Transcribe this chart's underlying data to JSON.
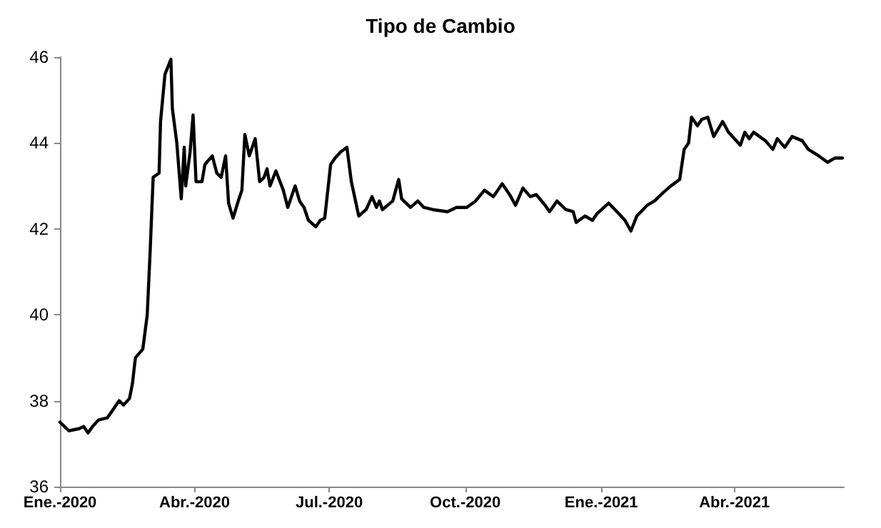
{
  "chart_data": {
    "type": "line",
    "title": "Tipo de Cambio",
    "x": [
      "2020-01-01",
      "2020-01-07",
      "2020-01-14",
      "2020-01-17",
      "2020-01-20",
      "2020-01-23",
      "2020-01-27",
      "2020-02-02",
      "2020-02-05",
      "2020-02-10",
      "2020-02-13",
      "2020-02-17",
      "2020-02-19",
      "2020-02-21",
      "2020-02-26",
      "2020-02-29",
      "2020-03-02",
      "2020-03-04",
      "2020-03-08",
      "2020-03-09",
      "2020-03-12",
      "2020-03-16",
      "2020-03-17",
      "2020-03-20",
      "2020-03-23",
      "2020-03-25",
      "2020-03-26",
      "2020-03-29",
      "2020-03-31",
      "2020-04-02",
      "2020-04-06",
      "2020-04-08",
      "2020-04-13",
      "2020-04-16",
      "2020-04-19",
      "2020-04-22",
      "2020-04-24",
      "2020-04-27",
      "2020-05-01",
      "2020-05-03",
      "2020-05-05",
      "2020-05-08",
      "2020-05-12",
      "2020-05-15",
      "2020-05-18",
      "2020-05-20",
      "2020-05-22",
      "2020-05-26",
      "2020-05-31",
      "2020-06-03",
      "2020-06-08",
      "2020-06-11",
      "2020-06-14",
      "2020-06-17",
      "2020-06-22",
      "2020-06-25",
      "2020-06-28",
      "2020-07-02",
      "2020-07-05",
      "2020-07-09",
      "2020-07-13",
      "2020-07-16",
      "2020-07-21",
      "2020-07-26",
      "2020-07-30",
      "2020-08-02",
      "2020-08-04",
      "2020-08-06",
      "2020-08-13",
      "2020-08-17",
      "2020-08-19",
      "2020-08-25",
      "2020-08-30",
      "2020-09-03",
      "2020-09-09",
      "2020-09-19",
      "2020-09-25",
      "2020-10-02",
      "2020-10-08",
      "2020-10-14",
      "2020-10-20",
      "2020-10-26",
      "2020-10-31",
      "2020-11-04",
      "2020-11-09",
      "2020-11-14",
      "2020-11-18",
      "2020-11-24",
      "2020-11-27",
      "2020-12-02",
      "2020-12-08",
      "2020-12-13",
      "2020-12-15",
      "2020-12-21",
      "2020-12-26",
      "2020-12-29",
      "2021-01-06",
      "2021-01-13",
      "2021-01-17",
      "2021-01-21",
      "2021-01-25",
      "2021-02-01",
      "2021-02-06",
      "2021-02-12",
      "2021-02-17",
      "2021-02-23",
      "2021-02-26",
      "2021-03-01",
      "2021-03-03",
      "2021-03-07",
      "2021-03-10",
      "2021-03-14",
      "2021-03-18",
      "2021-03-24",
      "2021-03-28",
      "2021-04-05",
      "2021-04-08",
      "2021-04-11",
      "2021-04-14",
      "2021-04-22",
      "2021-04-27",
      "2021-04-30",
      "2021-05-05",
      "2021-05-10",
      "2021-05-17",
      "2021-05-21",
      "2021-05-28",
      "2021-06-03",
      "2021-06-08",
      "2021-06-13"
    ],
    "series": [
      {
        "color": "#000000",
        "values": [
          37.5,
          37.3,
          37.35,
          37.4,
          37.25,
          37.4,
          37.55,
          37.6,
          37.75,
          38.0,
          37.9,
          38.05,
          38.4,
          39.0,
          39.2,
          40.0,
          41.5,
          43.2,
          43.3,
          44.5,
          45.6,
          45.95,
          44.8,
          44.0,
          42.7,
          43.9,
          43.0,
          43.8,
          44.65,
          43.1,
          43.1,
          43.5,
          43.7,
          43.3,
          43.2,
          43.7,
          42.6,
          42.25,
          42.7,
          42.9,
          44.2,
          43.7,
          44.1,
          43.1,
          43.2,
          43.4,
          43.0,
          43.35,
          42.9,
          42.5,
          43.0,
          42.65,
          42.5,
          42.2,
          42.05,
          42.2,
          42.25,
          43.5,
          43.65,
          43.8,
          43.9,
          43.1,
          42.3,
          42.45,
          42.75,
          42.5,
          42.65,
          42.45,
          42.65,
          43.15,
          42.7,
          42.5,
          42.65,
          42.5,
          42.45,
          42.4,
          42.5,
          42.5,
          42.65,
          42.9,
          42.75,
          43.05,
          42.8,
          42.55,
          42.95,
          42.75,
          42.8,
          42.55,
          42.4,
          42.65,
          42.45,
          42.4,
          42.15,
          42.3,
          42.2,
          42.35,
          42.6,
          42.35,
          42.2,
          41.95,
          42.3,
          42.55,
          42.65,
          42.85,
          43.0,
          43.15,
          43.85,
          44.0,
          44.6,
          44.4,
          44.55,
          44.6,
          44.15,
          44.5,
          44.25,
          43.95,
          44.25,
          44.1,
          44.25,
          44.05,
          43.85,
          44.1,
          43.9,
          44.15,
          44.05,
          43.85,
          43.7,
          43.55,
          43.65,
          43.65
        ]
      }
    ],
    "xlim": [
      "2020-01-01",
      "2021-06-14"
    ],
    "xticks": [
      {
        "value": "2020-01-01",
        "label": "Ene.-2020"
      },
      {
        "value": "2020-04-01",
        "label": "Abr.-2020"
      },
      {
        "value": "2020-07-01",
        "label": "Jul.-2020"
      },
      {
        "value": "2020-10-01",
        "label": "Oct.-2020"
      },
      {
        "value": "2021-01-01",
        "label": "Ene.-2021"
      },
      {
        "value": "2021-04-01",
        "label": "Abr.-2021"
      }
    ],
    "ylim": [
      36,
      46
    ],
    "yticks": [
      36,
      38,
      40,
      42,
      44,
      46
    ],
    "grid": false,
    "marker": "none",
    "line_style": "solid"
  }
}
